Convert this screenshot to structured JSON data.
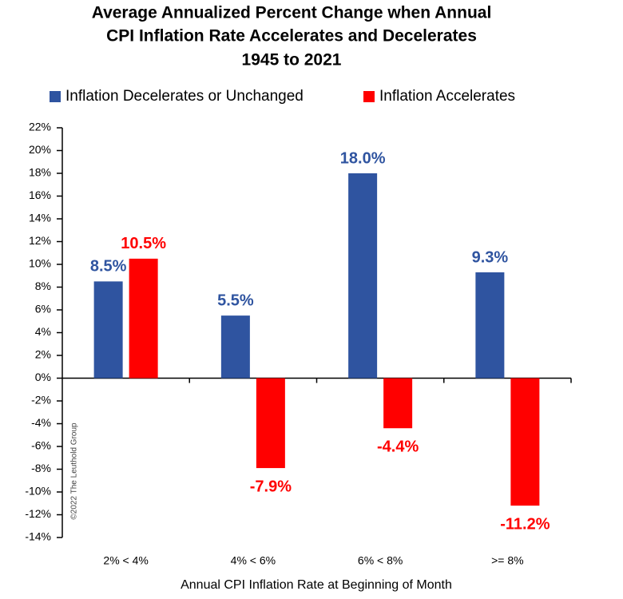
{
  "chart_data": {
    "type": "bar",
    "title": [
      "Average Annualized Percent Change when Annual",
      "CPI Inflation Rate Accelerates and Decelerates",
      "1945 to 2021"
    ],
    "x_label": "Annual CPI Inflation Rate at Beginning of Month",
    "annotation": "©2022 The Leuthold Group",
    "categories": [
      "2% < 4%",
      "4% < 6%",
      "6% < 8%",
      ">= 8%"
    ],
    "series": [
      {
        "name": "Inflation Decelerates or Unchanged",
        "color": "#2f54a0",
        "values": [
          8.5,
          5.5,
          18.0,
          9.3
        ],
        "value_labels": [
          "8.5%",
          "5.5%",
          "18.0%",
          "9.3%"
        ]
      },
      {
        "name": "Inflation Accelerates",
        "color": "#ff0000",
        "values": [
          10.5,
          -7.9,
          -4.4,
          -11.2
        ],
        "value_labels": [
          "10.5%",
          "-7.9%",
          "-4.4%",
          "-11.2%"
        ]
      }
    ],
    "ylim": [
      -14,
      22
    ],
    "yticks": [
      {
        "value": -14,
        "label": "-14%"
      },
      {
        "value": -12,
        "label": "-12%"
      },
      {
        "value": -10,
        "label": "-10%"
      },
      {
        "value": -8,
        "label": "-8%"
      },
      {
        "value": -6,
        "label": "-6%"
      },
      {
        "value": -4,
        "label": "-4%"
      },
      {
        "value": -2,
        "label": "-2%"
      },
      {
        "value": 0,
        "label": "0%"
      },
      {
        "value": 2,
        "label": "2%"
      },
      {
        "value": 4,
        "label": "4%"
      },
      {
        "value": 6,
        "label": "6%"
      },
      {
        "value": 8,
        "label": "8%"
      },
      {
        "value": 10,
        "label": "10%"
      },
      {
        "value": 12,
        "label": "12%"
      },
      {
        "value": 14,
        "label": "14%"
      },
      {
        "value": 16,
        "label": "16%"
      },
      {
        "value": 18,
        "label": "18%"
      },
      {
        "value": 20,
        "label": "20%"
      },
      {
        "value": 22,
        "label": "22%"
      }
    ],
    "grid": false,
    "legend": "top"
  }
}
